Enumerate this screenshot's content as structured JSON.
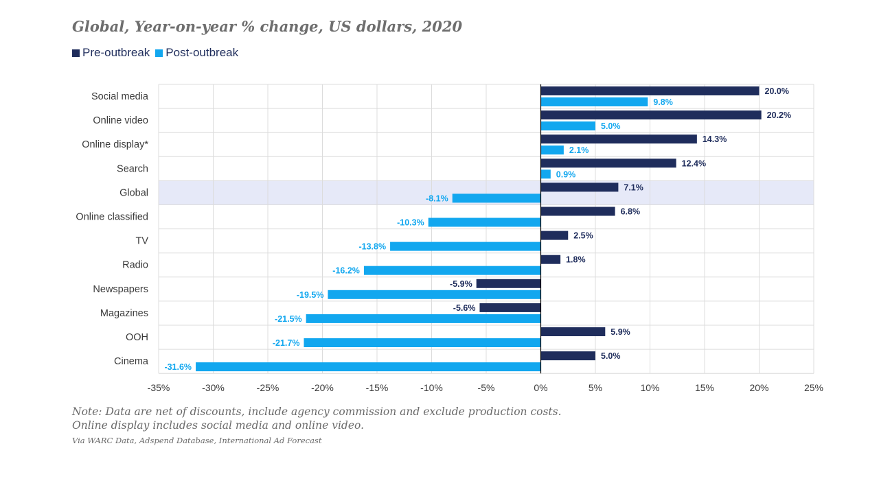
{
  "title": "Global, Year-on-year % change, US dollars, 2020",
  "note": "Note: Data are net of discounts, include agency commission and exclude production costs. Online display includes social media and online video.",
  "source": "Via WARC Data, Adspend Database, International Ad Forecast",
  "colors": {
    "pre": "#1f2d5c",
    "post": "#12a7ef",
    "highlight": "#e6e9f8",
    "grid": "#dcdcdc",
    "axis_text": "#3a3a3a"
  },
  "chart_data": {
    "type": "bar",
    "orientation": "horizontal",
    "categories": [
      "Social media",
      "Online video",
      "Online display*",
      "Search",
      "Global",
      "Online classified",
      "TV",
      "Radio",
      "Newspapers",
      "Magazines",
      "OOH",
      "Cinema"
    ],
    "highlight_category": "Global",
    "series": [
      {
        "name": "Pre-outbreak",
        "values": [
          20.0,
          20.2,
          14.3,
          12.4,
          7.1,
          6.8,
          2.5,
          1.8,
          -5.9,
          -5.6,
          5.9,
          5.0
        ]
      },
      {
        "name": "Post-outbreak",
        "values": [
          9.8,
          5.0,
          2.1,
          0.9,
          -8.1,
          -10.3,
          -13.8,
          -16.2,
          -19.5,
          -21.5,
          -21.7,
          -31.6
        ]
      }
    ],
    "xlim": [
      -35,
      25
    ],
    "x_ticks": [
      -35,
      -30,
      -25,
      -20,
      -15,
      -10,
      -5,
      0,
      5,
      10,
      15,
      20,
      25
    ],
    "x_tick_labels": [
      "-35%",
      "-30%",
      "-25%",
      "-20%",
      "-15%",
      "-10%",
      "-5%",
      "0%",
      "5%",
      "10%",
      "15%",
      "20%",
      "25%"
    ],
    "value_labels": [
      [
        "20.0%",
        "20.2%",
        "14.3%",
        "12.4%",
        "7.1%",
        "6.8%",
        "2.5%",
        "1.8%",
        "-5.9%",
        "-5.6%",
        "5.9%",
        "5.0%"
      ],
      [
        "9.8%",
        "5.0%",
        "2.1%",
        "0.9%",
        "-8.1%",
        "-10.3%",
        "-13.8%",
        "-16.2%",
        "-19.5%",
        "-21.5%",
        "-21.7%",
        "-31.6%"
      ]
    ],
    "grid": true,
    "legend_position": "top-left"
  }
}
